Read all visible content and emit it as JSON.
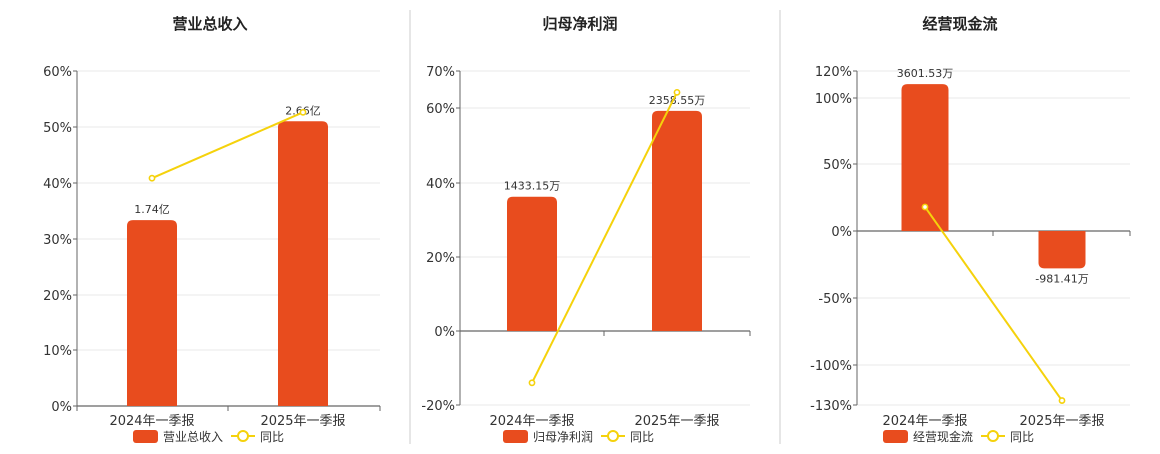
{
  "colors": {
    "bar": "#E84C1E",
    "line": "#F5D20C",
    "grid": "#e8e8e8",
    "axis": "#666666",
    "divider": "#cccccc"
  },
  "chart_data": [
    {
      "type": "bar",
      "title": "营业总收入",
      "categories": [
        "2024年一季报",
        "2025年一季报"
      ],
      "bar_axis_ticks": [
        "60%",
        "50%",
        "40%",
        "30%",
        "20%",
        "10%",
        "0%"
      ],
      "ylim": [
        0,
        60
      ],
      "series": [
        {
          "name": "营业总收入",
          "kind": "bar",
          "values": [
            33.3,
            51.0
          ],
          "labels": [
            "1.74亿",
            "2.66亿"
          ]
        },
        {
          "name": "同比",
          "kind": "line",
          "values": [
            40.8,
            52.6
          ]
        }
      ],
      "legend": "bottom"
    },
    {
      "type": "bar",
      "title": "归母净利润",
      "categories": [
        "2024年一季报",
        "2025年一季报"
      ],
      "bar_axis_ticks": [
        "70%",
        "60%",
        "40%",
        "20%",
        "0%",
        "-20%"
      ],
      "ylim": [
        -20,
        70
      ],
      "series": [
        {
          "name": "归母净利润",
          "kind": "bar",
          "values": [
            36.3,
            59.5
          ],
          "labels": [
            "1433.15万",
            "2358.55万"
          ]
        },
        {
          "name": "同比",
          "kind": "line",
          "values": [
            -14.0,
            64.5
          ]
        }
      ],
      "legend": "bottom"
    },
    {
      "type": "bar",
      "title": "经营现金流",
      "categories": [
        "2024年一季报",
        "2025年一季报"
      ],
      "bar_axis_ticks": [
        "120%",
        "100%",
        "50%",
        "0%",
        "-50%",
        "-100%",
        "-130%"
      ],
      "ylim": [
        -130,
        120
      ],
      "series": [
        {
          "name": "经营现金流",
          "kind": "bar",
          "values": [
            110.0,
            -28.0
          ],
          "labels": [
            "3601.53万",
            "-981.41万"
          ]
        },
        {
          "name": "同比",
          "kind": "line",
          "values": [
            18.0,
            -127.0
          ]
        }
      ],
      "legend": "bottom"
    }
  ]
}
